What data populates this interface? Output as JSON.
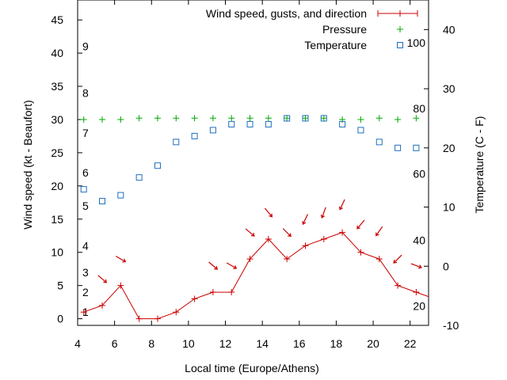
{
  "chart_data": {
    "type": "line",
    "xlabel": "Local time (Europe/Athens)",
    "ylabel_left": "Wind speed (kt - Beaufort)",
    "ylabel_right": "Temperature (C - F)",
    "xlim": [
      4,
      23
    ],
    "ylim_left": [
      -1,
      48
    ],
    "ylim_right": [
      -10,
      45
    ],
    "x_ticks": [
      4,
      6,
      8,
      10,
      12,
      14,
      16,
      18,
      20,
      22
    ],
    "y_ticks_left": [
      0,
      5,
      10,
      15,
      20,
      25,
      30,
      35,
      40,
      45
    ],
    "y_ticks_right": [
      -10,
      0,
      10,
      20,
      30,
      40
    ],
    "beaufort_labels": [
      {
        "label": "1",
        "kt": 1
      },
      {
        "label": "2",
        "kt": 4
      },
      {
        "label": "3",
        "kt": 7
      },
      {
        "label": "4",
        "kt": 11
      },
      {
        "label": "5",
        "kt": 17
      },
      {
        "label": "6",
        "kt": 22
      },
      {
        "label": "7",
        "kt": 28
      },
      {
        "label": "8",
        "kt": 34
      },
      {
        "label": "9",
        "kt": 41
      }
    ],
    "fahrenheit_labels": [
      {
        "label": "20",
        "celsius": -6.7
      },
      {
        "label": "40",
        "celsius": 4.4
      },
      {
        "label": "60",
        "celsius": 15.6
      },
      {
        "label": "80",
        "celsius": 26.7
      },
      {
        "label": "100",
        "celsius": 37.8
      }
    ],
    "legend_position": "top-right",
    "series": [
      {
        "name": "Wind speed, gusts, and direction",
        "color": "#cc0000",
        "marker": "plus",
        "x": [
          4.33,
          5.33,
          6.33,
          7.33,
          8.33,
          9.33,
          10.33,
          11.33,
          12.33,
          13.33,
          14.33,
          15.33,
          16.33,
          17.33,
          18.33,
          19.33,
          20.33,
          21.33,
          22.33,
          23.33
        ],
        "values": [
          1,
          2,
          5,
          0,
          0,
          1,
          3,
          4,
          4,
          9,
          12,
          9,
          11,
          12,
          13,
          10,
          9,
          5,
          4,
          3
        ]
      },
      {
        "name": "Pressure",
        "color": "#00aa00",
        "marker": "plus",
        "x": [
          4.33,
          5.33,
          6.33,
          7.33,
          8.33,
          9.33,
          10.33,
          11.33,
          12.33,
          13.33,
          14.33,
          15.33,
          16.33,
          17.33,
          18.33,
          19.33,
          20.33,
          21.33,
          22.33
        ],
        "values": [
          30,
          30,
          30,
          30.2,
          30.2,
          30.2,
          30.2,
          30.2,
          30.2,
          30.2,
          30.2,
          30.2,
          30.2,
          30.2,
          30,
          30,
          30.2,
          30,
          30.2
        ]
      },
      {
        "name": "Temperature",
        "color": "#1f6fbf",
        "marker": "square",
        "x": [
          4.33,
          5.33,
          6.33,
          7.33,
          8.33,
          9.33,
          10.33,
          11.33,
          12.33,
          13.33,
          14.33,
          15.33,
          16.33,
          17.33,
          18.33,
          19.33,
          20.33,
          21.33,
          22.33
        ],
        "values": [
          13,
          11,
          12,
          15,
          17,
          21,
          22,
          23,
          24,
          24,
          24,
          25,
          25,
          25,
          24,
          23,
          21,
          20,
          20
        ]
      }
    ],
    "wind_direction_arrows": {
      "color": "#cc0000",
      "x": [
        6.33,
        5.33,
        11.33,
        12.33,
        13.33,
        14.33,
        15.33,
        16.33,
        17.33,
        18.33,
        19.33,
        20.33,
        21.33,
        22.33
      ],
      "kt": [
        9,
        6,
        8,
        8,
        13,
        16,
        13,
        15,
        16,
        17.2,
        14.2,
        13.2,
        9,
        8
      ],
      "direction_deg": [
        120,
        130,
        130,
        120,
        130,
        140,
        135,
        205,
        200,
        205,
        220,
        215,
        225,
        110
      ]
    }
  }
}
